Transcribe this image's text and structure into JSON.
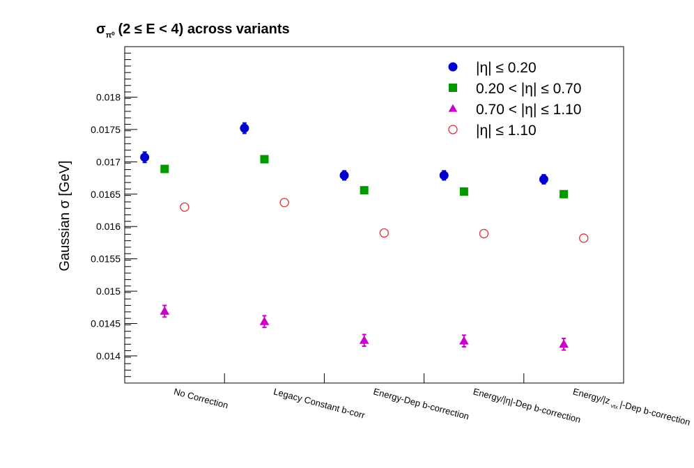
{
  "chart_data": {
    "type": "scatter",
    "title": {
      "sigma": "σ",
      "subscript": "π⁰",
      "rest": "(2 ≤ E < 4) across variants"
    },
    "ylabel": "Gaussian σ  [GeV]",
    "ylim": [
      0.01358,
      0.01878
    ],
    "yticks": [
      0.014,
      0.0145,
      0.015,
      0.0155,
      0.016,
      0.0165,
      0.017,
      0.0175,
      0.018
    ],
    "ytick_labels": [
      "0.014",
      "0.0145",
      "0.015",
      "0.0155",
      "0.016",
      "0.0165",
      "0.017",
      "0.0175",
      "0.018"
    ],
    "grid": false,
    "legend_position": "top-right",
    "categories": [
      {
        "text": "No Correction"
      },
      {
        "text": "Legacy Constant b-corr"
      },
      {
        "text": "Energy-Dep b-correction"
      },
      {
        "text": "Energy/|η|-Dep b-correction"
      },
      {
        "text": "Energy/|z",
        "sub": "vtx",
        "after": "|-Dep b-correction"
      }
    ],
    "series": [
      {
        "name": "|η| ≤ 0.20",
        "marker": "circle",
        "filled": true,
        "color": "#0000cc",
        "offset": -0.3,
        "values": [
          0.01707,
          0.01752,
          0.01679,
          0.01679,
          0.01673
        ],
        "errors": [
          8e-05,
          8e-05,
          7e-05,
          7e-05,
          7e-05
        ]
      },
      {
        "name": "0.20 < |η| ≤ 0.70",
        "marker": "square",
        "filled": true,
        "color": "#009900",
        "offset": -0.1,
        "values": [
          0.01689,
          0.01704,
          0.01656,
          0.01654,
          0.0165
        ],
        "errors": [
          3e-05,
          3e-05,
          3e-05,
          3e-05,
          3e-05
        ]
      },
      {
        "name": "0.70 < |η| ≤ 1.10",
        "marker": "triangle",
        "filled": true,
        "color": "#cc00cc",
        "offset": -0.1,
        "values": [
          0.01469,
          0.01453,
          0.01424,
          0.01423,
          0.01418
        ],
        "errors": [
          9e-05,
          9e-05,
          9e-05,
          9e-05,
          9e-05
        ]
      },
      {
        "name": "|η| ≤ 1.10",
        "marker": "circle",
        "filled": false,
        "color": "#e03030",
        "offset": 0.1,
        "values": [
          0.0163,
          0.01637,
          0.0159,
          0.01589,
          0.01582
        ],
        "errors": [
          0,
          0,
          0,
          0,
          0
        ]
      }
    ]
  }
}
